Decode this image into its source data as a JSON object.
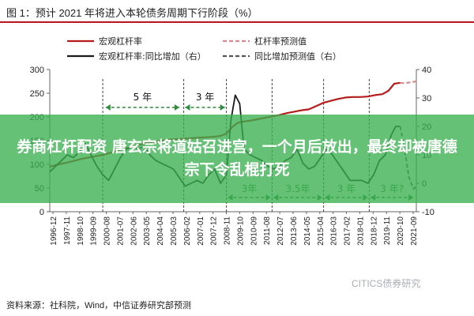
{
  "title": "图 1：预计 2021 年将进入本轮债务周期下行阶段（%）",
  "source": "资料来源：社科院，Wind，中信证券研究部预测",
  "watermark": "CITICS债券研究",
  "banner": "券商杠杆配资 唐玄宗将道姑召进宫，一个月后放出，最终却被唐德宗下令乱棍打死",
  "colors": {
    "leverage": "#b71c1c",
    "yoy": "#1a1a1a",
    "forecast": "#d98a8f",
    "yoy_forecast": "#555555",
    "annotation": "#2e8b3e",
    "banner": "#3ab04f"
  },
  "chart_data": {
    "type": "line",
    "ylim_left": [
      0,
      300
    ],
    "yticks_left": [
      "0",
      "50",
      "100",
      "150",
      "200",
      "250",
      "300"
    ],
    "ylim_right": [
      -10,
      40
    ],
    "yticks_right": [
      "-10",
      "0",
      "10",
      "20",
      "30",
      "40"
    ],
    "x_tick_labels": [
      "1996-12",
      "1997-11",
      "1998-10",
      "1999-09",
      "2000-08",
      "2001-07",
      "2002-06",
      "2003-05",
      "2004-04",
      "2005-03",
      "2006-02",
      "2007-01",
      "2007-12",
      "2008-11",
      "2009-10",
      "2010-09",
      "2011-08",
      "2012-07",
      "2013-06",
      "2014-05",
      "2015-04",
      "2016-03",
      "2017-02",
      "2018-01",
      "2018-12",
      "2019-11",
      "2020-10",
      "2021-09"
    ],
    "legend": [
      {
        "label": "宏观杠杆率",
        "style": "solid",
        "color": "#b71c1c"
      },
      {
        "label": "杠杆率预测值",
        "style": "dashed",
        "color": "#d98a8f"
      },
      {
        "label": "宏观杠杆率:同比增加（右）",
        "style": "solid",
        "color": "#1a1a1a"
      },
      {
        "label": "同比增加预测值（右）",
        "style": "dashed",
        "color": "#555555"
      }
    ],
    "series": [
      {
        "name": "宏观杠杆率",
        "axis": "left",
        "x": [
          1996.9,
          1997.5,
          1998.0,
          1998.5,
          1999.0,
          1999.5,
          2000.0,
          2000.5,
          2001.0,
          2001.5,
          2002.0,
          2002.5,
          2003.0,
          2003.5,
          2004.0,
          2004.5,
          2005.0,
          2005.5,
          2006.0,
          2006.5,
          2007.0,
          2007.5,
          2008.0,
          2008.5,
          2008.9,
          2009.3,
          2009.7,
          2010.0,
          2010.5,
          2011.0,
          2011.5,
          2012.0,
          2012.5,
          2013.0,
          2013.5,
          2014.0,
          2014.5,
          2015.0,
          2015.5,
          2016.0,
          2016.5,
          2017.0,
          2017.5,
          2018.0,
          2018.5,
          2019.0,
          2019.5,
          2019.9,
          2020.3,
          2020.7
        ],
        "values": [
          95,
          100,
          103,
          107,
          111,
          114,
          117,
          120,
          124,
          129,
          133,
          137,
          141,
          145,
          148,
          150,
          152,
          153,
          154,
          155,
          156,
          157,
          158,
          160,
          165,
          179,
          188,
          190,
          192,
          195,
          198,
          201,
          204,
          208,
          211,
          214,
          216,
          223,
          230,
          234,
          238,
          241,
          242,
          242,
          243,
          246,
          248,
          255,
          270,
          272
        ]
      },
      {
        "name": "杠杆率预测值",
        "axis": "left",
        "x": [
          2020.7,
          2021.0,
          2021.4,
          2021.8
        ],
        "values": [
          272,
          271,
          273,
          275
        ]
      },
      {
        "name": "宏观杠杆率:同比增加（右）",
        "axis": "right",
        "x": [
          1996.9,
          1997.3,
          1997.7,
          1998.1,
          1998.5,
          1998.9,
          1999.3,
          1999.7,
          2000.1,
          2000.5,
          2000.9,
          2001.3,
          2001.7,
          2002.1,
          2002.5,
          2002.9,
          2003.3,
          2003.7,
          2004.1,
          2004.5,
          2004.9,
          2005.3,
          2005.7,
          2006.1,
          2006.5,
          2006.9,
          2007.3,
          2007.7,
          2008.1,
          2008.5,
          2008.9,
          2009.2,
          2009.5,
          2009.8,
          2010.1,
          2010.5,
          2010.9,
          2011.3,
          2011.7,
          2012.1,
          2012.5,
          2012.9,
          2013.3,
          2013.7,
          2014.1,
          2014.5,
          2014.9,
          2015.3,
          2015.7,
          2016.1,
          2016.5,
          2016.9,
          2017.3,
          2017.7,
          2018.1,
          2018.5,
          2018.9,
          2019.3,
          2019.7,
          2020.1,
          2020.4,
          2020.7
        ],
        "values": [
          4,
          6,
          8,
          10,
          9,
          11,
          14,
          10,
          6,
          3,
          1,
          5,
          9,
          12,
          13,
          12,
          13,
          10,
          8,
          7,
          6,
          5,
          2,
          -1,
          0,
          1,
          0,
          3,
          5,
          0,
          3,
          22,
          31,
          28,
          12,
          10,
          9,
          8,
          6,
          5,
          6,
          8,
          9,
          12,
          7,
          5,
          6,
          9,
          12,
          10,
          7,
          4,
          1,
          1,
          1,
          0,
          3,
          8,
          10,
          17,
          20,
          20
        ]
      },
      {
        "name": "同比增加预测值（右）",
        "axis": "right",
        "x": [
          2020.7,
          2021.0,
          2021.3,
          2021.6,
          2021.8
        ],
        "values": [
          20,
          12,
          2,
          -2,
          -1
        ]
      }
    ],
    "vertical_lines_x": [
      2000.5,
      2006.0,
      2008.9,
      2012.0,
      2015.5,
      2018.6
    ],
    "annotations": [
      {
        "text": "5 年",
        "x_from": 2000.7,
        "x_to": 2005.7,
        "pos": "upper"
      },
      {
        "text": "3 年",
        "x_from": 2006.1,
        "x_to": 2008.8,
        "pos": "upper"
      },
      {
        "text": "3年",
        "x_from": 2009.0,
        "x_to": 2011.9,
        "pos": "lower"
      },
      {
        "text": "3.5年",
        "x_from": 2012.1,
        "x_to": 2015.4,
        "pos": "lower"
      },
      {
        "text": "3 年",
        "x_from": 2015.6,
        "x_to": 2018.5,
        "pos": "lower"
      },
      {
        "text": "3 年?",
        "x_from": 2018.7,
        "x_to": 2021.6,
        "pos": "lower"
      }
    ]
  }
}
